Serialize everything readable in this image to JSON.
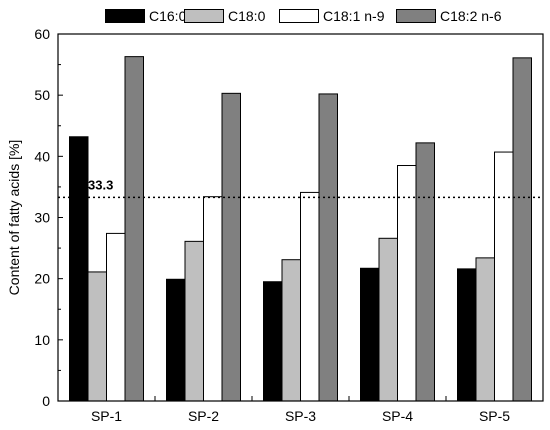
{
  "chart_data": {
    "type": "bar",
    "categories": [
      "SP-1",
      "SP-2",
      "SP-3",
      "SP-4",
      "SP-5"
    ],
    "series": [
      {
        "name": "C16:0",
        "color": "#000000",
        "values": [
          43.2,
          19.9,
          19.5,
          21.7,
          21.6
        ]
      },
      {
        "name": "C18:0",
        "color": "#bfbfbf",
        "values": [
          21.1,
          26.1,
          23.1,
          26.6,
          23.4
        ]
      },
      {
        "name": "C18:1 n-9",
        "color": "#ffffff",
        "values": [
          27.4,
          33.4,
          34.1,
          38.5,
          40.7
        ]
      },
      {
        "name": "C18:2 n-6",
        "color": "#808080",
        "values": [
          56.3,
          50.3,
          50.2,
          42.2,
          56.1
        ]
      }
    ],
    "title": "",
    "xlabel": "",
    "ylabel": "Content of fatty acids [%]",
    "ylim": [
      0,
      60
    ],
    "yticks": [
      0,
      10,
      20,
      30,
      40,
      50,
      60
    ],
    "grid": false,
    "legend_position": "top",
    "reference_line": {
      "value": 33.3,
      "label": "33.3",
      "style": "dotted"
    }
  }
}
